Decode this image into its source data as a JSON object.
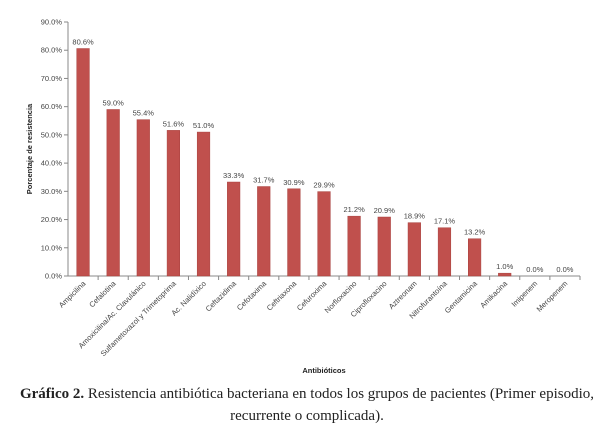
{
  "chart_data": {
    "type": "bar",
    "xlabel": "Antibióticos",
    "ylabel": "Porcentaje de resistencia",
    "ylim": [
      0,
      90
    ],
    "ytick_step": 10,
    "ytick_labels": [
      "0.0%",
      "10.0%",
      "20.0%",
      "30.0%",
      "40.0%",
      "50.0%",
      "60.0%",
      "70.0%",
      "80.0%",
      "90.0%"
    ],
    "grid": false,
    "legend": "none",
    "categories": [
      "Ampicilina",
      "Cefalotina",
      "Amoxicilina/Ac. Clavulánico",
      "Sulfametoxazol y Trimetoprima",
      "Ac. Nalidíxico",
      "Ceftazidima",
      "Cefotaxima",
      "Ceftriaxona",
      "Cefuroxima",
      "Norfloxacino",
      "Ciprofloxacino",
      "Aztreonam",
      "Nitrofurantoína",
      "Gentamicina",
      "Amikacina",
      "Imipenem",
      "Meropenem"
    ],
    "values": [
      80.6,
      59.0,
      55.4,
      51.6,
      51.0,
      33.3,
      31.7,
      30.9,
      29.9,
      21.2,
      20.9,
      18.9,
      17.1,
      13.2,
      1.0,
      0.0,
      0.0
    ],
    "value_labels": [
      "80.6%",
      "59.0%",
      "55.4%",
      "51.6%",
      "51.0%",
      "33.3%",
      "31.7%",
      "30.9%",
      "29.9%",
      "21.2%",
      "20.9%",
      "18.9%",
      "17.1%",
      "13.2%",
      "1.0%",
      "0.0%",
      "0.0%"
    ],
    "bar_color": "#c0504d"
  },
  "caption": {
    "label": "Gráfico 2.",
    "text": "Resistencia antibiótica bacteriana en todos los grupos de pacientes (Primer episodio, recurrente o complicada)."
  }
}
